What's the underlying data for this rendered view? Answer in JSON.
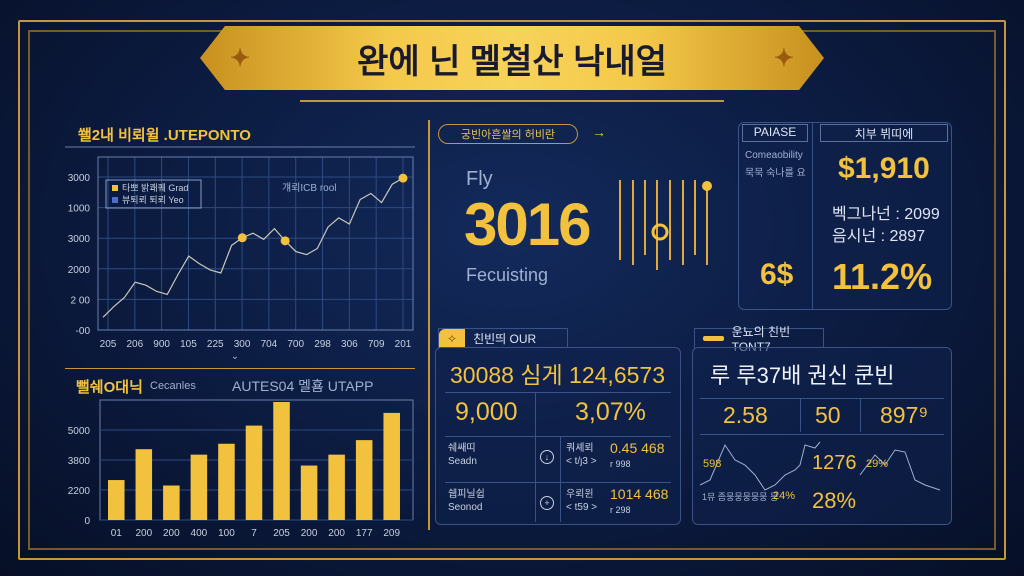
{
  "header": {
    "title": "완에 닌 멜철산 낙내얼"
  },
  "colors": {
    "accent": "#f2c23e",
    "background": "#0b1a3e",
    "line": "#c8c8b8",
    "bar": "#f2c23e"
  },
  "line_panel": {
    "title": "쐘2내 비뢰윌 .UTEPONTO",
    "annotation": "걔뢰ICB rool",
    "legend": [
      {
        "label": "타뽀 밝쾌퀘 Grad",
        "color": "#f2c23e"
      },
      {
        "label": "뷰퇴뢰 퇴뢰 Yeo",
        "color": "#4a6fd0"
      }
    ]
  },
  "bar_panel": {
    "title": "뻘쉐O대닉",
    "subtitle": "Cecanles",
    "right_title": "AUTES04 멜횸 UTAPP"
  },
  "chart_data": [
    {
      "type": "line",
      "yticks": [
        "3000",
        "1000",
        "3000",
        "2000",
        "2 00",
        "-00"
      ],
      "xticks": [
        "205",
        "206",
        "900",
        "105",
        "225",
        "300",
        "704",
        "700",
        "298",
        "306",
        "709",
        "201"
      ],
      "values": [
        5,
        12,
        18,
        28,
        26,
        22,
        20,
        33,
        45,
        40,
        36,
        34,
        52,
        57,
        60,
        56,
        63,
        55,
        48,
        46,
        50,
        64,
        70,
        66,
        82,
        86,
        80,
        92,
        96
      ],
      "markers": [
        {
          "index": 13,
          "label": ""
        },
        {
          "index": 17,
          "label": ""
        },
        {
          "index": 28,
          "label": ""
        }
      ]
    },
    {
      "type": "bar",
      "yticks": [
        "5000",
        "3800",
        "2200",
        "0"
      ],
      "ylim": [
        0,
        6500
      ],
      "categories": [
        "01",
        "200",
        "200",
        "400",
        "100",
        "7",
        "205",
        "200",
        "200",
        "177",
        "209"
      ],
      "values": [
        2200,
        3900,
        1900,
        3600,
        4200,
        5200,
        6500,
        3000,
        3600,
        4400,
        5900
      ]
    }
  ],
  "kpi": {
    "badge": "궁빈아흔쌀의 허비란",
    "label": "Fly",
    "value": "3016",
    "sub": "Fecuisting"
  },
  "right_top": {
    "box1_title": "PAIASE",
    "box1_lines": [
      "Comeaobility",
      "묵묵 숙나를 요"
    ],
    "box1_value": "6$",
    "box2_title": "치부 뷔띠에",
    "box2_value": "$1,910",
    "stat1": "벡그나넌 : 2099",
    "stat2": "음시넌 : 2897",
    "box2_pct": "11.2%"
  },
  "bottom_mid": {
    "tab": "친빈띄 OUR",
    "headline": "30088 심게 124,6573",
    "v1": "9,000",
    "v2": "3,07%",
    "rows": [
      {
        "l1": "쉐쌔띠",
        "l2": "Seadn",
        "m1": "쿼셰뢰",
        "m2": "< t/ȷ3 >",
        "r1": "0.45 468",
        "r2": "r 998"
      },
      {
        "l1": "쉡피닐쉽",
        "l2": "Seonod",
        "m1": "우뢰윈",
        "m2": "< t59 >",
        "r1": "1014 468",
        "r2": "r 298"
      }
    ]
  },
  "bottom_right": {
    "tab": "운뇨의 친빈TONT7",
    "headline": "루 루37배 권신 쿤빈",
    "v1": "2.58",
    "v2": "50",
    "v3": "897⁹",
    "s1": "598",
    "s2": "1276",
    "s3": "29%",
    "p1": "24%",
    "p2": "28%",
    "foot": "1뮤 좀뭉뭉뭉뭉뭉 뭉"
  }
}
